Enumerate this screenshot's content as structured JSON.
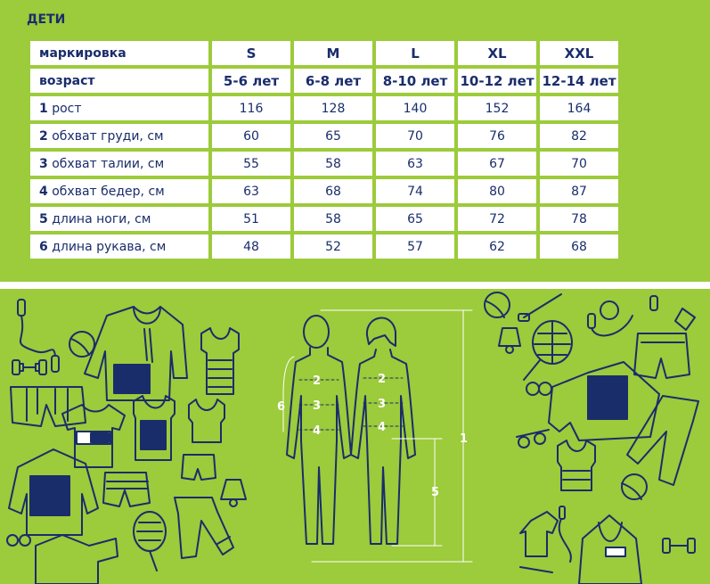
{
  "title": "ДЕТИ",
  "header_row": {
    "label": "маркировка",
    "sizes": [
      "S",
      "M",
      "L",
      "XL",
      "XXL"
    ]
  },
  "age_row": {
    "label": "возраст",
    "values": [
      "5-6 лет",
      "6-8 лет",
      "8-10 лет",
      "10-12 лет",
      "12-14 лет"
    ]
  },
  "rows": [
    {
      "num": "1",
      "label": "рост",
      "values": [
        "116",
        "128",
        "140",
        "152",
        "164"
      ]
    },
    {
      "num": "2",
      "label": "обхват груди, см",
      "values": [
        "60",
        "65",
        "70",
        "76",
        "82"
      ]
    },
    {
      "num": "3",
      "label": "обхват талии, см",
      "values": [
        "55",
        "58",
        "63",
        "67",
        "70"
      ]
    },
    {
      "num": "4",
      "label": "обхват бедер, см",
      "values": [
        "63",
        "68",
        "74",
        "80",
        "87"
      ]
    },
    {
      "num": "5",
      "label": "длина ноги, см",
      "values": [
        "51",
        "58",
        "65",
        "72",
        "78"
      ]
    },
    {
      "num": "6",
      "label": "длина рукава, см",
      "values": [
        "48",
        "52",
        "57",
        "62",
        "68"
      ]
    }
  ],
  "figure_labels": {
    "m2": "2",
    "m3": "3",
    "m4": "4",
    "m6": "6",
    "m1": "1",
    "m5": "5",
    "f2": "2",
    "f3": "3",
    "f4": "4"
  },
  "colors": {
    "green": "#9ccb3b",
    "navy": "#1a2d6b",
    "white": "#ffffff"
  },
  "icons": [
    "jump-rope-icon",
    "ball-icon",
    "dumbbell-icon",
    "hoodie-icon",
    "tank-top-icon",
    "shorts-icon",
    "tshirt-icon",
    "racket-icon",
    "shuttlecock-icon",
    "pants-icon",
    "glasses-icon",
    "whistle-icon"
  ]
}
